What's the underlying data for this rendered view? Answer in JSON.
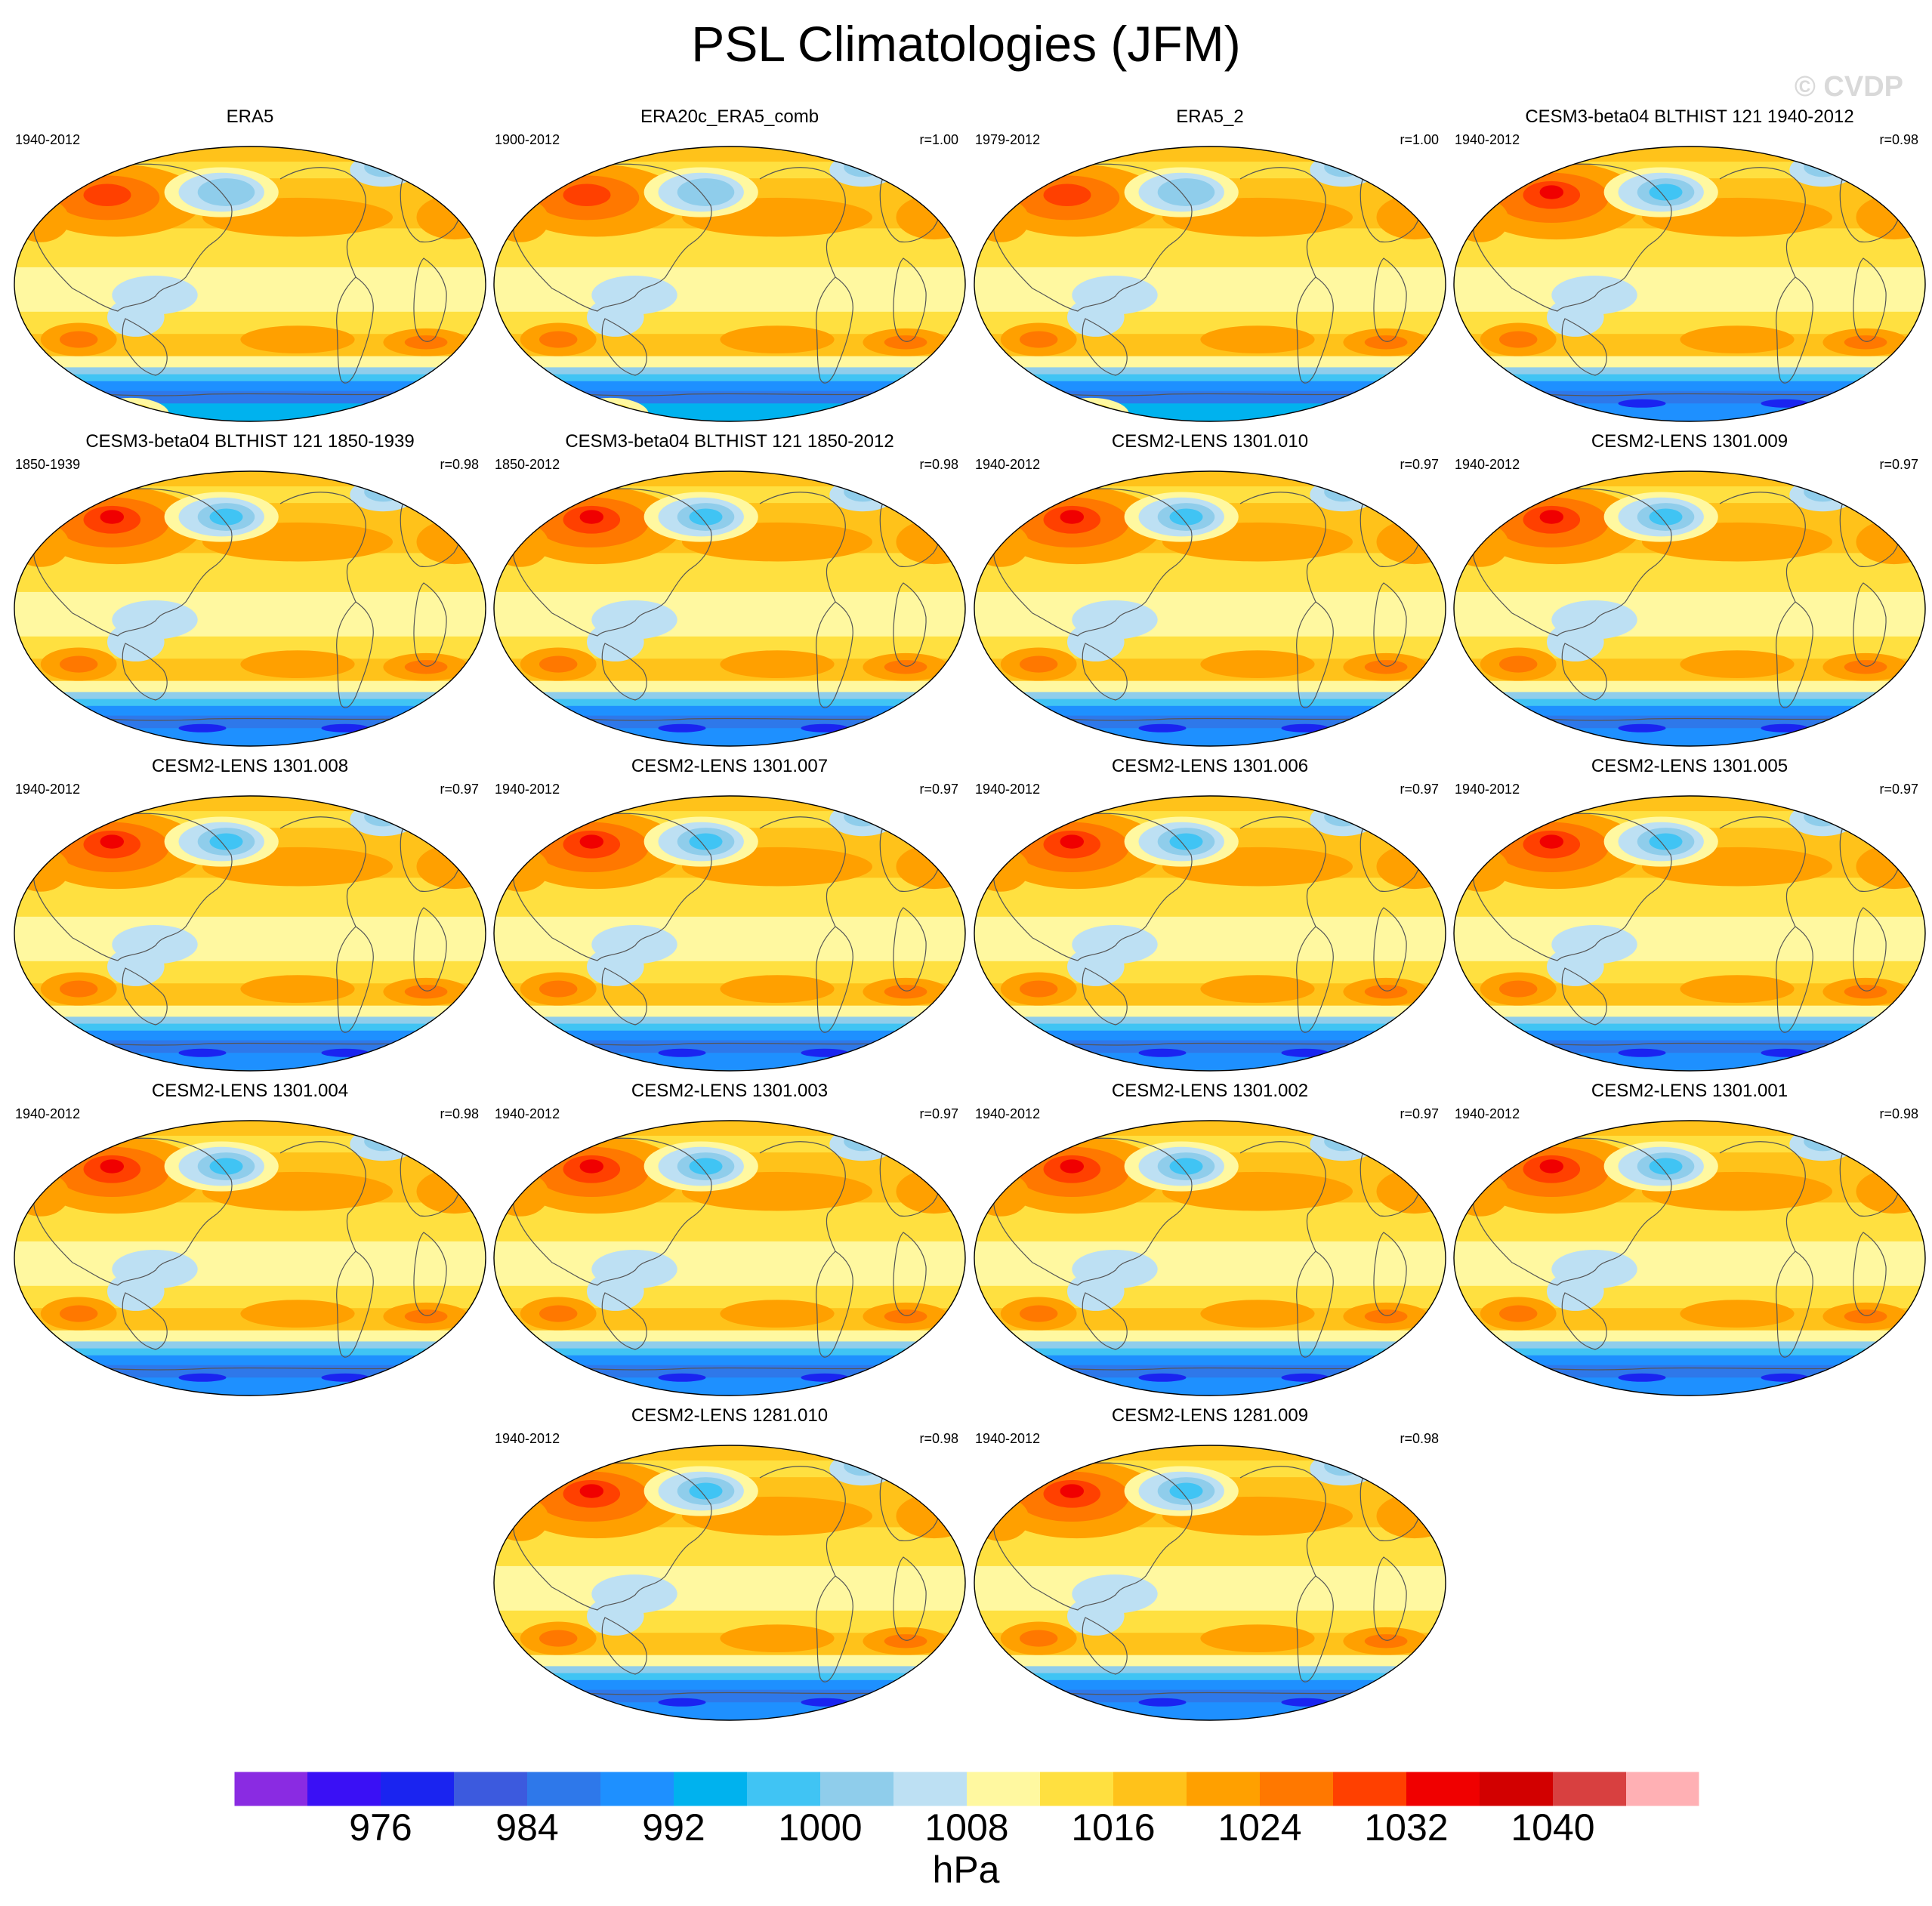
{
  "title": "PSL Climatologies (JFM)",
  "watermark": "© CVDP",
  "panels": [
    {
      "title": "ERA5",
      "period": "1940-2012",
      "corr": "",
      "variant": 0
    },
    {
      "title": "ERA20c_ERA5_comb",
      "period": "1900-2012",
      "corr": "r=1.00",
      "variant": 0
    },
    {
      "title": "ERA5_2",
      "period": "1979-2012",
      "corr": "r=1.00",
      "variant": 0
    },
    {
      "title": "CESM3-beta04 BLTHIST 121 1940-2012",
      "period": "1940-2012",
      "corr": "r=0.98",
      "variant": 1
    },
    {
      "title": "CESM3-beta04 BLTHIST 121 1850-1939",
      "period": "1850-1939",
      "corr": "r=0.98",
      "variant": 1
    },
    {
      "title": "CESM3-beta04 BLTHIST 121 1850-2012",
      "period": "1850-2012",
      "corr": "r=0.98",
      "variant": 1
    },
    {
      "title": "CESM2-LENS 1301.010",
      "period": "1940-2012",
      "corr": "r=0.97",
      "variant": 2
    },
    {
      "title": "CESM2-LENS 1301.009",
      "period": "1940-2012",
      "corr": "r=0.97",
      "variant": 2
    },
    {
      "title": "CESM2-LENS 1301.008",
      "period": "1940-2012",
      "corr": "r=0.97",
      "variant": 2
    },
    {
      "title": "CESM2-LENS 1301.007",
      "period": "1940-2012",
      "corr": "r=0.97",
      "variant": 2
    },
    {
      "title": "CESM2-LENS 1301.006",
      "period": "1940-2012",
      "corr": "r=0.97",
      "variant": 2
    },
    {
      "title": "CESM2-LENS 1301.005",
      "period": "1940-2012",
      "corr": "r=0.97",
      "variant": 2
    },
    {
      "title": "CESM2-LENS 1301.004",
      "period": "1940-2012",
      "corr": "r=0.98",
      "variant": 2
    },
    {
      "title": "CESM2-LENS 1301.003",
      "period": "1940-2012",
      "corr": "r=0.97",
      "variant": 2
    },
    {
      "title": "CESM2-LENS 1301.002",
      "period": "1940-2012",
      "corr": "r=0.97",
      "variant": 2
    },
    {
      "title": "CESM2-LENS 1301.001",
      "period": "1940-2012",
      "corr": "r=0.98",
      "variant": 2
    },
    {
      "title": "CESM2-LENS 1281.010",
      "period": "1940-2012",
      "corr": "r=0.98",
      "variant": 2
    },
    {
      "title": "CESM2-LENS 1281.009",
      "period": "1940-2012",
      "corr": "r=0.98",
      "variant": 2
    }
  ],
  "colorbar": {
    "colors": [
      "#8a2be2",
      "#3a10f5",
      "#1a24f0",
      "#3c5ade",
      "#2e78ea",
      "#1e90ff",
      "#00b2ee",
      "#40c4f4",
      "#8fcdeb",
      "#bde0f3",
      "#fff8a0",
      "#ffe040",
      "#ffc21a",
      "#ffa000",
      "#ff7800",
      "#ff4000",
      "#f00000",
      "#d20000",
      "#d84040",
      "#ffb0b4"
    ],
    "labels": [
      "976",
      "984",
      "992",
      "1000",
      "1008",
      "1016",
      "1024",
      "1032",
      "1040"
    ],
    "unit": "hPa"
  }
}
